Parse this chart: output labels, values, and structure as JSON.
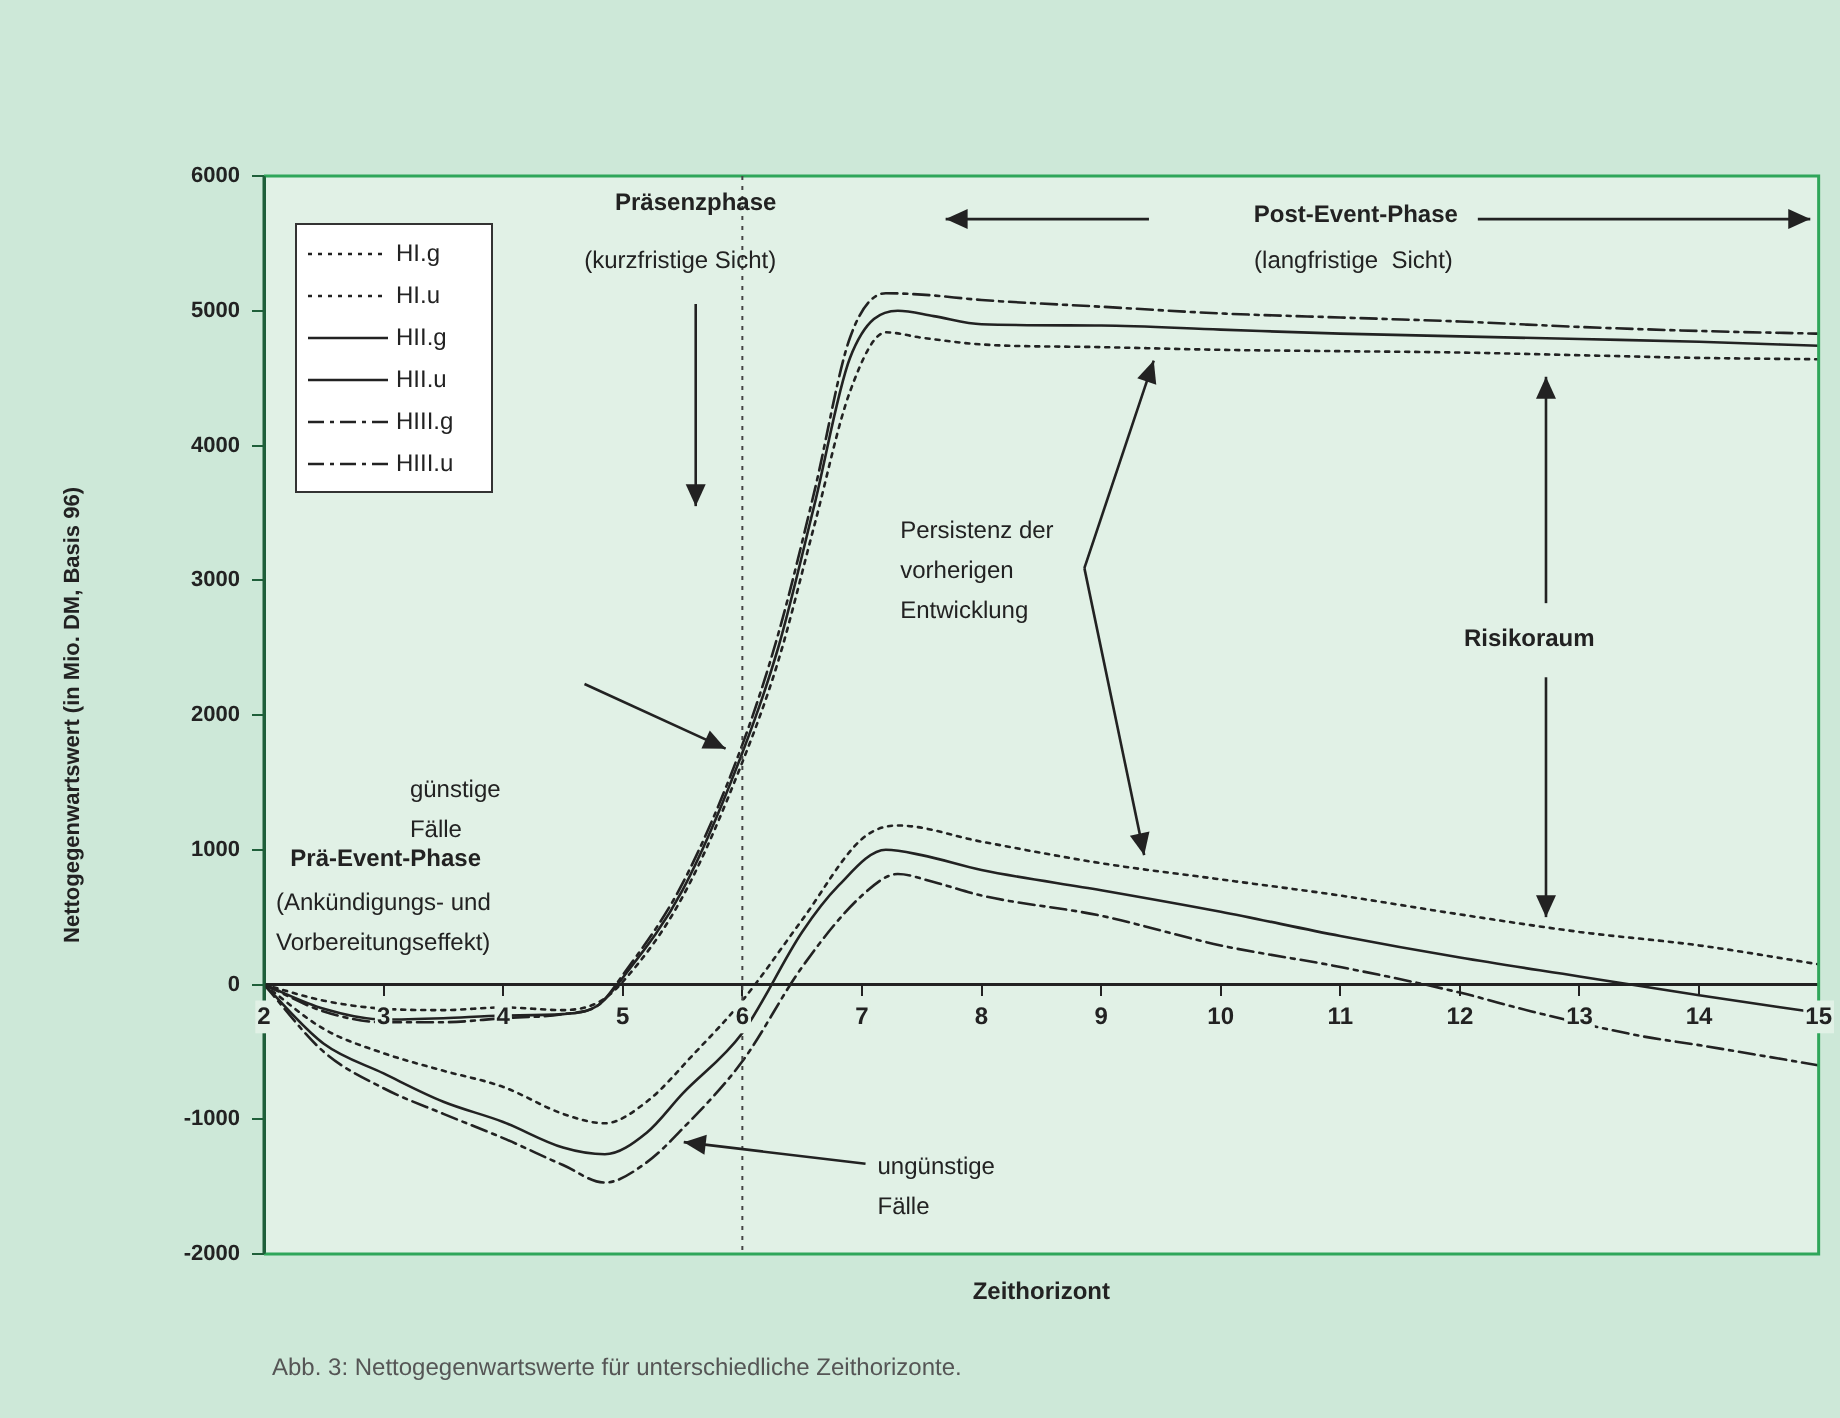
{
  "chart_data": {
    "type": "line",
    "xlabel": "Zeithorizont",
    "ylabel": "Nettogegenwartswert (in Mio. DM, Basis 96)",
    "xlim": [
      2,
      15
    ],
    "xticks": [
      2,
      3,
      4,
      5,
      6,
      7,
      8,
      9,
      10,
      11,
      12,
      13,
      14,
      15
    ],
    "ylim": [
      -2000,
      6000
    ],
    "yticks": [
      -2000,
      -1000,
      0,
      1000,
      2000,
      3000,
      4000,
      5000,
      6000
    ],
    "grid": false,
    "legend": "top left",
    "marker": "none",
    "series": [
      {
        "name": "HI.g",
        "color": "#222222",
        "line_style": "dotted",
        "x": [
          2,
          2.5,
          3,
          3.5,
          4,
          4.5,
          4.8,
          5,
          5.5,
          6,
          6.3,
          6.6,
          6.9,
          7.2,
          7.5,
          8,
          9,
          10,
          11,
          12,
          13,
          14,
          15
        ],
        "values": [
          0,
          -120,
          -180,
          -190,
          -170,
          -190,
          -130,
          20,
          650,
          1650,
          2400,
          3400,
          4400,
          4840,
          4800,
          4750,
          4730,
          4710,
          4700,
          4690,
          4670,
          4650,
          4640
        ]
      },
      {
        "name": "HI.u",
        "color": "#222222",
        "line_style": "dotted",
        "x": [
          2,
          2.5,
          3,
          3.5,
          4,
          4.5,
          4.85,
          5.2,
          5.6,
          6,
          6.5,
          7,
          7.3,
          8,
          9,
          10,
          11,
          12,
          13,
          14,
          15
        ],
        "values": [
          0,
          -330,
          -510,
          -640,
          -760,
          -960,
          -1030,
          -870,
          -510,
          -120,
          480,
          1080,
          1180,
          1060,
          900,
          780,
          660,
          520,
          390,
          290,
          150
        ]
      },
      {
        "name": "HII.g",
        "color": "#222222",
        "line_style": "solid",
        "x": [
          2,
          2.5,
          3,
          3.5,
          4,
          4.5,
          4.8,
          5,
          5.5,
          6,
          6.3,
          6.6,
          6.9,
          7.3,
          7.6,
          8,
          9,
          10,
          11,
          12,
          13,
          14,
          15
        ],
        "values": [
          0,
          -180,
          -260,
          -250,
          -230,
          -220,
          -150,
          50,
          700,
          1720,
          2500,
          3550,
          4650,
          5000,
          4960,
          4900,
          4890,
          4860,
          4830,
          4810,
          4790,
          4770,
          4740
        ]
      },
      {
        "name": "HII.u",
        "color": "#222222",
        "line_style": "solid",
        "x": [
          2,
          2.5,
          3,
          3.5,
          4,
          4.5,
          4.85,
          5.2,
          5.5,
          6,
          6.5,
          6.8,
          7.2,
          7.5,
          8,
          9,
          10,
          11,
          12,
          13,
          14,
          15
        ],
        "values": [
          0,
          -440,
          -660,
          -870,
          -1020,
          -1210,
          -1260,
          -1100,
          -810,
          -360,
          390,
          730,
          1000,
          960,
          850,
          700,
          540,
          360,
          200,
          60,
          -80,
          -210
        ]
      },
      {
        "name": "HIII.g",
        "color": "#222222",
        "line_style": "dashed",
        "x": [
          2,
          2.5,
          3,
          3.5,
          4,
          4.5,
          4.8,
          5,
          5.5,
          6,
          6.3,
          6.6,
          6.9,
          7.2,
          7.5,
          8,
          9,
          10,
          11,
          12,
          13,
          14,
          15
        ],
        "values": [
          0,
          -200,
          -280,
          -280,
          -250,
          -220,
          -150,
          70,
          750,
          1780,
          2600,
          3650,
          4800,
          5130,
          5120,
          5080,
          5030,
          4980,
          4950,
          4920,
          4880,
          4850,
          4830
        ]
      },
      {
        "name": "HIII.u",
        "color": "#222222",
        "line_style": "dashed",
        "x": [
          2,
          2.5,
          3,
          3.5,
          4,
          4.5,
          4.85,
          5.2,
          5.5,
          6,
          6.5,
          7,
          7.3,
          7.6,
          8,
          9,
          10,
          11,
          12,
          12.6,
          13.5,
          14,
          15
        ],
        "values": [
          0,
          -500,
          -770,
          -960,
          -1140,
          -1340,
          -1470,
          -1320,
          -1070,
          -570,
          130,
          660,
          820,
          760,
          660,
          510,
          290,
          130,
          -60,
          -200,
          -380,
          -450,
          -600
        ]
      }
    ],
    "ref_lines": [
      {
        "axis": "x",
        "value": 6,
        "line_style": "dotted",
        "color": "#444444"
      }
    ],
    "annotations": [
      "Präsenzphase",
      "(kurzfristige Sicht)",
      "Post-Event-Phase",
      "(langfristige  Sicht)",
      "Persistenz der\nvorherigen\nEntwicklung",
      "Risikoraum",
      "günstige\nFälle",
      "ungünstige\nFälle",
      "Prä-Event-Phase",
      "(Ankündigungs- und\nVorbereitungseffekt)",
      "Abb. 3: Nettogegenwartswerte für unterschiedliche Zeithorizonte."
    ]
  }
}
